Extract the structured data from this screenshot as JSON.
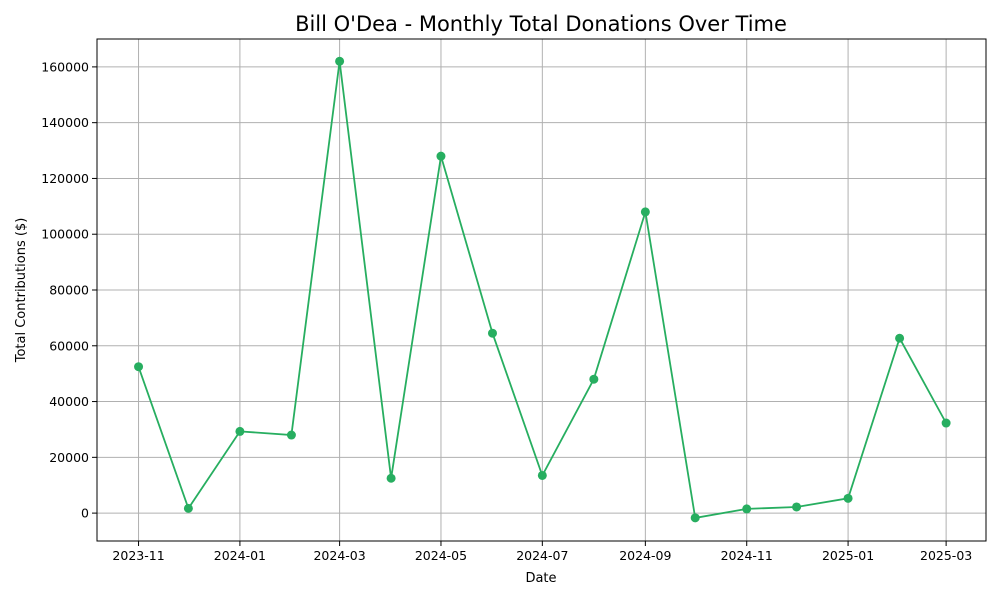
{
  "chart_data": {
    "type": "line",
    "title": "Bill O'Dea - Monthly Total Donations Over Time",
    "xlabel": "Date",
    "ylabel": "Total Contributions ($)",
    "x_ticks": [
      "2023-11",
      "2024-01",
      "2024-03",
      "2024-05",
      "2024-07",
      "2024-09",
      "2024-11",
      "2025-01",
      "2025-03"
    ],
    "y_ticks": [
      0,
      20000,
      40000,
      60000,
      80000,
      100000,
      120000,
      140000,
      160000
    ],
    "ylim": [
      -10000,
      170000
    ],
    "xlim": [
      "2023-10-07",
      "2025-03-25"
    ],
    "grid": true,
    "color": "#27ae60",
    "marker": "circle",
    "series": [
      {
        "x": [
          "2023-11-01",
          "2023-12-01",
          "2024-01-01",
          "2024-02-01",
          "2024-03-01",
          "2024-04-01",
          "2024-05-01",
          "2024-06-01",
          "2024-07-01",
          "2024-08-01",
          "2024-09-01",
          "2024-10-01",
          "2024-11-01",
          "2024-12-01",
          "2025-01-01",
          "2025-02-01",
          "2025-03-01"
        ],
        "values": [
          52500,
          1700,
          29300,
          28000,
          162000,
          12500,
          128000,
          64500,
          13500,
          48000,
          108000,
          -1700,
          1500,
          2200,
          5300,
          62700,
          32300
        ]
      }
    ]
  }
}
